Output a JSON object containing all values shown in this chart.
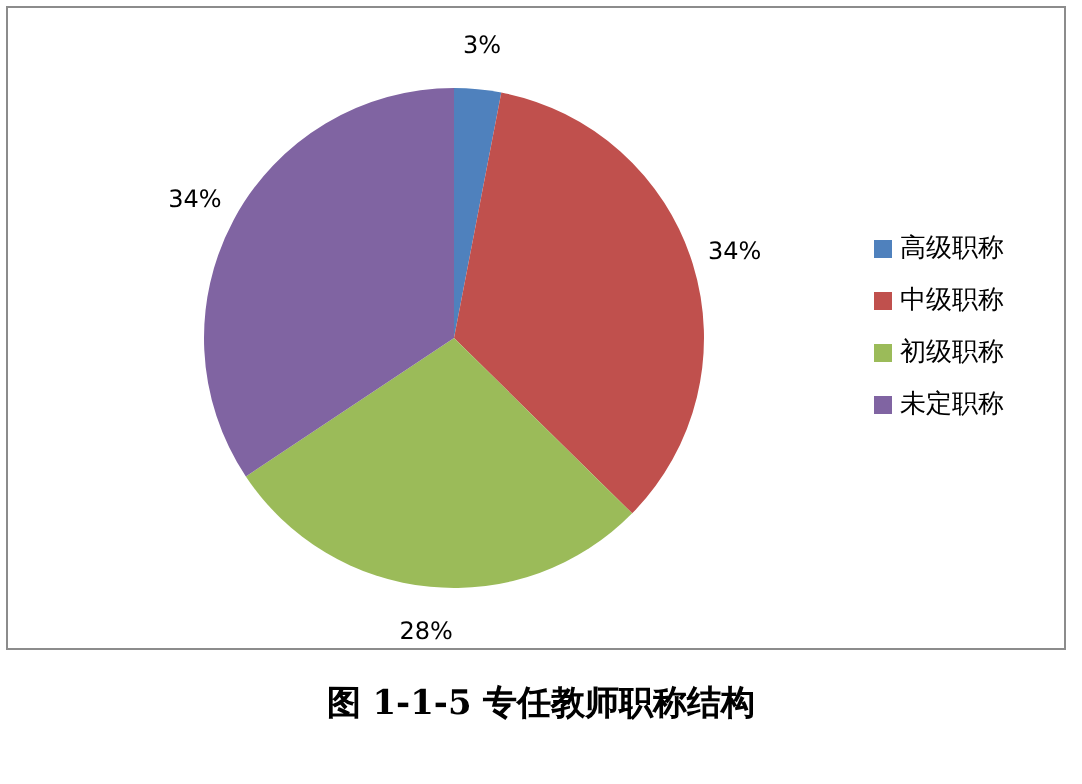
{
  "chart_data": {
    "type": "pie",
    "title": "图 1-1-5 专任教师职称结构",
    "categories": [
      "高级职称",
      "中级职称",
      "初级职称",
      "未定职称"
    ],
    "values": [
      3,
      34,
      28,
      34
    ],
    "value_labels": [
      "3%",
      "34%",
      "28%",
      "34%"
    ],
    "colors": [
      "#4f81bd",
      "#c0504d",
      "#9bbb59",
      "#8064a2"
    ],
    "legend": "right"
  }
}
